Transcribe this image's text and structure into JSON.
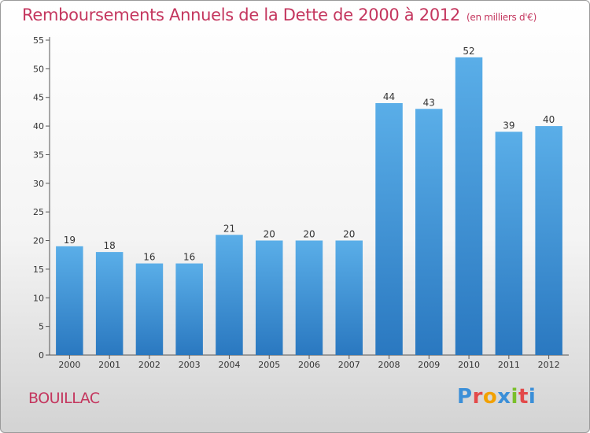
{
  "header": {
    "title": "Remboursements Annuels de la Dette de 2000 à 2012",
    "unit": "(en milliers d'€)"
  },
  "footer": {
    "place": "BOUILLAC",
    "logo": {
      "letters": [
        "P",
        "r",
        "o",
        "x",
        "i",
        "t",
        "i"
      ],
      "colors": [
        "#3b8fd8",
        "#e34a4a",
        "#f2a100",
        "#3b8fd8",
        "#7abf2a",
        "#e34a4a",
        "#3b8fd8"
      ]
    }
  },
  "chart_data": {
    "type": "bar",
    "categories": [
      "2000",
      "2001",
      "2002",
      "2003",
      "2004",
      "2005",
      "2006",
      "2007",
      "2008",
      "2009",
      "2010",
      "2011",
      "2012"
    ],
    "values": [
      19,
      18,
      16,
      16,
      21,
      20,
      20,
      20,
      44,
      43,
      52,
      39,
      40
    ],
    "title": "Remboursements Annuels de la Dette de 2000 à 2012",
    "xlabel": "",
    "ylabel": "",
    "ylim": [
      0,
      55
    ],
    "yticks": [
      0,
      5,
      10,
      15,
      20,
      25,
      30,
      35,
      40,
      45,
      50,
      55
    ],
    "grid": false,
    "legend": "none",
    "bar_color": "#3f94dc"
  }
}
